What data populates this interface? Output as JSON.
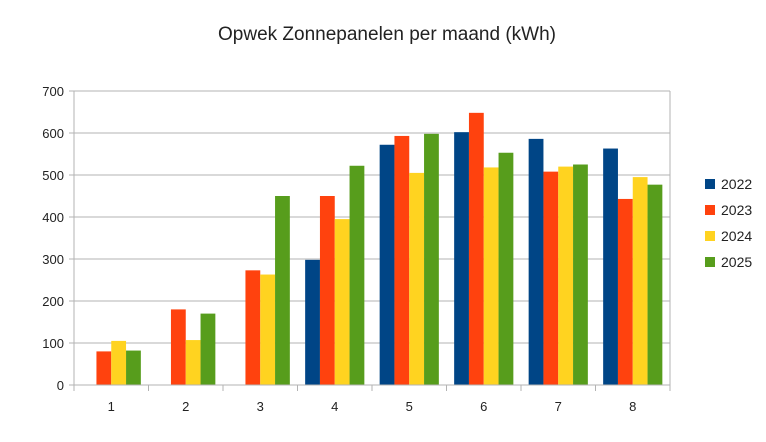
{
  "chart_data": {
    "type": "bar",
    "title": "Opwek Zonnepanelen per maand (kWh)",
    "xlabel": "",
    "ylabel": "",
    "categories": [
      "1",
      "2",
      "3",
      "4",
      "5",
      "6",
      "7",
      "8"
    ],
    "ylim": [
      0,
      700
    ],
    "yticks": [
      0,
      100,
      200,
      300,
      400,
      500,
      600,
      700
    ],
    "grid": true,
    "legend_position": "right",
    "series": [
      {
        "name": "2022",
        "color": "#004586",
        "values": [
          null,
          null,
          null,
          298,
          572,
          602,
          586,
          563
        ]
      },
      {
        "name": "2023",
        "color": "#ff420e",
        "values": [
          80,
          180,
          273,
          450,
          593,
          648,
          508,
          443
        ]
      },
      {
        "name": "2024",
        "color": "#ffd320",
        "values": [
          105,
          107,
          263,
          395,
          505,
          518,
          520,
          495
        ]
      },
      {
        "name": "2025",
        "color": "#579d1c",
        "values": [
          82,
          170,
          450,
          522,
          598,
          553,
          525,
          477
        ]
      }
    ]
  }
}
